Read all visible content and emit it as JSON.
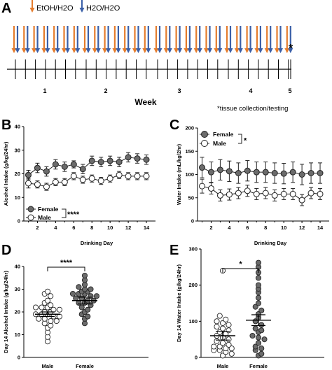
{
  "panel_letters": [
    "A",
    "B",
    "C",
    "D",
    "E"
  ],
  "timeline": {
    "legend": [
      "EtOH/H2O",
      "H2O/H2O"
    ],
    "weeks": [
      "1",
      "2",
      "3",
      "4",
      "5"
    ],
    "xlabel": "Week",
    "asterisk": "*",
    "footnote": "*tissue collection/testing",
    "colors": {
      "etoh": "#e57c2c",
      "water": "#3a5fa8"
    }
  },
  "chart_data": [
    {
      "panel": "B",
      "type": "line",
      "xlabel": "Drinking Day",
      "ylabel": "Alcohol Intake (g/kg/24hr)",
      "ylim": [
        0,
        40
      ],
      "yticks": [
        "0",
        "10",
        "20",
        "30",
        "40"
      ],
      "xticks": [
        "2",
        "4",
        "6",
        "8",
        "10",
        "12",
        "14"
      ],
      "x": [
        1,
        2,
        3,
        4,
        5,
        6,
        7,
        8,
        9,
        10,
        11,
        12,
        13,
        14
      ],
      "series": [
        {
          "name": "Female",
          "fill": "#6b6b6b",
          "values": [
            19.5,
            22.5,
            21,
            24,
            23,
            24,
            22,
            25.5,
            25,
            25.5,
            25,
            27,
            26.5,
            26
          ],
          "errors": [
            2,
            2,
            2,
            2,
            2,
            1.5,
            2,
            2,
            2,
            2,
            2,
            2,
            2,
            2
          ]
        },
        {
          "name": "Male",
          "fill": "#ffffff",
          "values": [
            16,
            15.5,
            14.5,
            16.5,
            16.5,
            19,
            17.5,
            18,
            17,
            18,
            19.5,
            19,
            19,
            19
          ],
          "errors": [
            2,
            1.5,
            1.5,
            1.5,
            1.5,
            1.5,
            1.5,
            1.5,
            1.5,
            1.5,
            1.5,
            1.5,
            1.5,
            1.5
          ]
        }
      ],
      "significance": "****",
      "legend_position": "bottom-left"
    },
    {
      "panel": "C",
      "type": "line",
      "xlabel": "Drinking Day",
      "ylabel": "Water Intake (mL/kg/2hr)",
      "ylim": [
        0,
        200
      ],
      "yticks": [
        "0",
        "50",
        "100",
        "150",
        "200"
      ],
      "xticks": [
        "2",
        "4",
        "6",
        "8",
        "10",
        "12",
        "14"
      ],
      "x": [
        1,
        2,
        3,
        4,
        5,
        6,
        7,
        8,
        9,
        10,
        11,
        12,
        13,
        14
      ],
      "series": [
        {
          "name": "Female",
          "fill": "#6b6b6b",
          "values": [
            115,
            105,
            110,
            107,
            103,
            108,
            105,
            105,
            103,
            102,
            105,
            100,
            103,
            103
          ],
          "errors": [
            22,
            22,
            22,
            22,
            22,
            22,
            22,
            22,
            22,
            22,
            22,
            22,
            22,
            22
          ]
        },
        {
          "name": "Male",
          "fill": "#ffffff",
          "values": [
            75,
            70,
            55,
            57,
            60,
            65,
            58,
            60,
            55,
            58,
            58,
            45,
            60,
            58
          ],
          "errors": [
            15,
            12,
            12,
            12,
            12,
            12,
            12,
            12,
            12,
            12,
            12,
            12,
            12,
            12
          ]
        }
      ],
      "significance": "*",
      "legend_position": "top-left"
    },
    {
      "panel": "D",
      "type": "scatter",
      "ylabel": "Day 14 Alcohol Intake (g/kg/24hr)",
      "ylim": [
        0,
        40
      ],
      "yticks": [
        "0",
        "10",
        "20",
        "30",
        "40"
      ],
      "categories": [
        "Male",
        "Female"
      ],
      "series": [
        {
          "name": "Male",
          "fill": "#ffffff",
          "mean": 19,
          "sem": 1,
          "values": [
            29,
            28,
            27,
            25,
            24,
            23,
            22,
            22,
            22,
            21,
            21,
            20,
            20,
            19,
            19,
            19,
            18,
            18,
            17,
            17,
            16,
            16,
            15,
            14,
            13,
            11,
            9,
            7
          ]
        },
        {
          "name": "Female",
          "fill": "#6b6b6b",
          "mean": 25,
          "sem": 1.5,
          "values": [
            36,
            34,
            32,
            31,
            30,
            30,
            29,
            29,
            28,
            28,
            28,
            27,
            27,
            26,
            26,
            25,
            25,
            24,
            24,
            23,
            22,
            21,
            20,
            19,
            18,
            17,
            15
          ]
        }
      ],
      "significance": "****"
    },
    {
      "panel": "E",
      "type": "scatter",
      "ylabel": "Day 14 Water Intake (g/kg/24hr)",
      "ylim": [
        0,
        300
      ],
      "yticks": [
        "0",
        "100",
        "200",
        "300"
      ],
      "categories": [
        "Male",
        "Female"
      ],
      "series": [
        {
          "name": "Male",
          "fill": "#ffffff",
          "mean": 60,
          "sem": 12,
          "values": [
            240,
            115,
            105,
            100,
            95,
            90,
            85,
            80,
            75,
            70,
            65,
            60,
            55,
            50,
            45,
            40,
            35,
            30,
            30,
            25,
            25,
            20,
            20,
            15,
            10,
            5
          ]
        },
        {
          "name": "Female",
          "fill": "#6b6b6b",
          "mean": 103,
          "sem": 15,
          "values": [
            262,
            250,
            235,
            220,
            200,
            190,
            180,
            165,
            150,
            140,
            130,
            120,
            110,
            100,
            90,
            80,
            75,
            70,
            60,
            55,
            50,
            40,
            30,
            25,
            20,
            10,
            5
          ]
        }
      ],
      "significance": "*"
    }
  ]
}
